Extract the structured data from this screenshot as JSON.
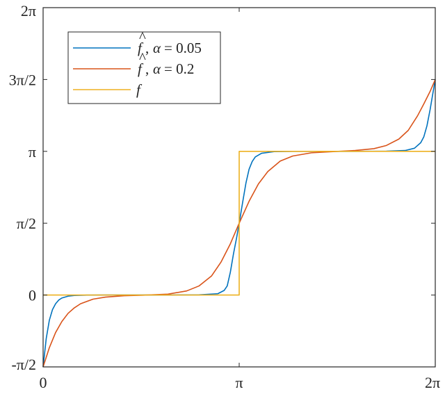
{
  "chart_data": {
    "type": "line",
    "xlim": [
      0,
      6.283185307
    ],
    "ylim": [
      -1.570796327,
      6.283185307
    ],
    "x_ticks": [
      {
        "value": 0,
        "label": "0"
      },
      {
        "value": 3.141592654,
        "label": "π"
      },
      {
        "value": 6.283185307,
        "label": "2π"
      }
    ],
    "y_ticks": [
      {
        "value": -1.570796327,
        "label": "-π/2"
      },
      {
        "value": 0,
        "label": "0"
      },
      {
        "value": 1.570796327,
        "label": "π/2"
      },
      {
        "value": 3.141592654,
        "label": "π"
      },
      {
        "value": 4.71238898,
        "label": "3π/2"
      },
      {
        "value": 6.283185307,
        "label": "2π"
      }
    ],
    "grid": false,
    "legend_position": "top-left",
    "series": [
      {
        "name": "f̂, α = 0.05",
        "color": "#0072BD",
        "x": [
          0,
          0.05,
          0.1,
          0.15,
          0.2,
          0.25,
          0.3,
          0.4,
          0.5,
          0.7,
          1.0,
          1.5,
          2.0,
          2.5,
          2.8,
          2.9,
          2.95,
          3.0,
          3.05,
          3.1,
          3.141592654,
          3.2,
          3.25,
          3.3,
          3.35,
          3.4,
          3.5,
          3.7,
          4.0,
          4.5,
          5.0,
          5.5,
          5.8,
          5.95,
          6.05,
          6.1,
          6.15,
          6.2,
          6.25,
          6.283185307
        ],
        "y": [
          -1.5708,
          -0.95,
          -0.55,
          -0.32,
          -0.19,
          -0.11,
          -0.065,
          -0.025,
          -0.01,
          -0.002,
          0,
          0,
          0.001,
          0.005,
          0.03,
          0.1,
          0.2,
          0.5,
          0.9,
          1.25,
          1.5708,
          2.05,
          2.45,
          2.75,
          2.92,
          3.02,
          3.1,
          3.135,
          3.1416,
          3.1416,
          3.142,
          3.145,
          3.16,
          3.21,
          3.33,
          3.46,
          3.7,
          4.05,
          4.45,
          4.7124
        ]
      },
      {
        "name": "f̂, α = 0.2",
        "color": "#D95319",
        "x": [
          0,
          0.1,
          0.2,
          0.3,
          0.4,
          0.5,
          0.6,
          0.8,
          1.0,
          1.3,
          1.6,
          2.0,
          2.3,
          2.5,
          2.7,
          2.85,
          3.0,
          3.141592654,
          3.3,
          3.45,
          3.6,
          3.8,
          4.0,
          4.3,
          4.7,
          5.0,
          5.3,
          5.5,
          5.7,
          5.85,
          6.0,
          6.1,
          6.2,
          6.283185307
        ],
        "y": [
          -1.5708,
          -1.15,
          -0.82,
          -0.58,
          -0.4,
          -0.28,
          -0.19,
          -0.09,
          -0.045,
          -0.015,
          -0.003,
          0.02,
          0.09,
          0.2,
          0.42,
          0.72,
          1.12,
          1.5708,
          2.05,
          2.43,
          2.7,
          2.93,
          3.04,
          3.11,
          3.14,
          3.16,
          3.2,
          3.27,
          3.41,
          3.6,
          3.92,
          4.18,
          4.45,
          4.7124
        ]
      },
      {
        "name": "f",
        "color": "#EDB120",
        "x": [
          0,
          3.141592654,
          3.141592654,
          6.283185307
        ],
        "y": [
          0,
          0,
          3.141592654,
          3.141592654
        ]
      }
    ]
  }
}
